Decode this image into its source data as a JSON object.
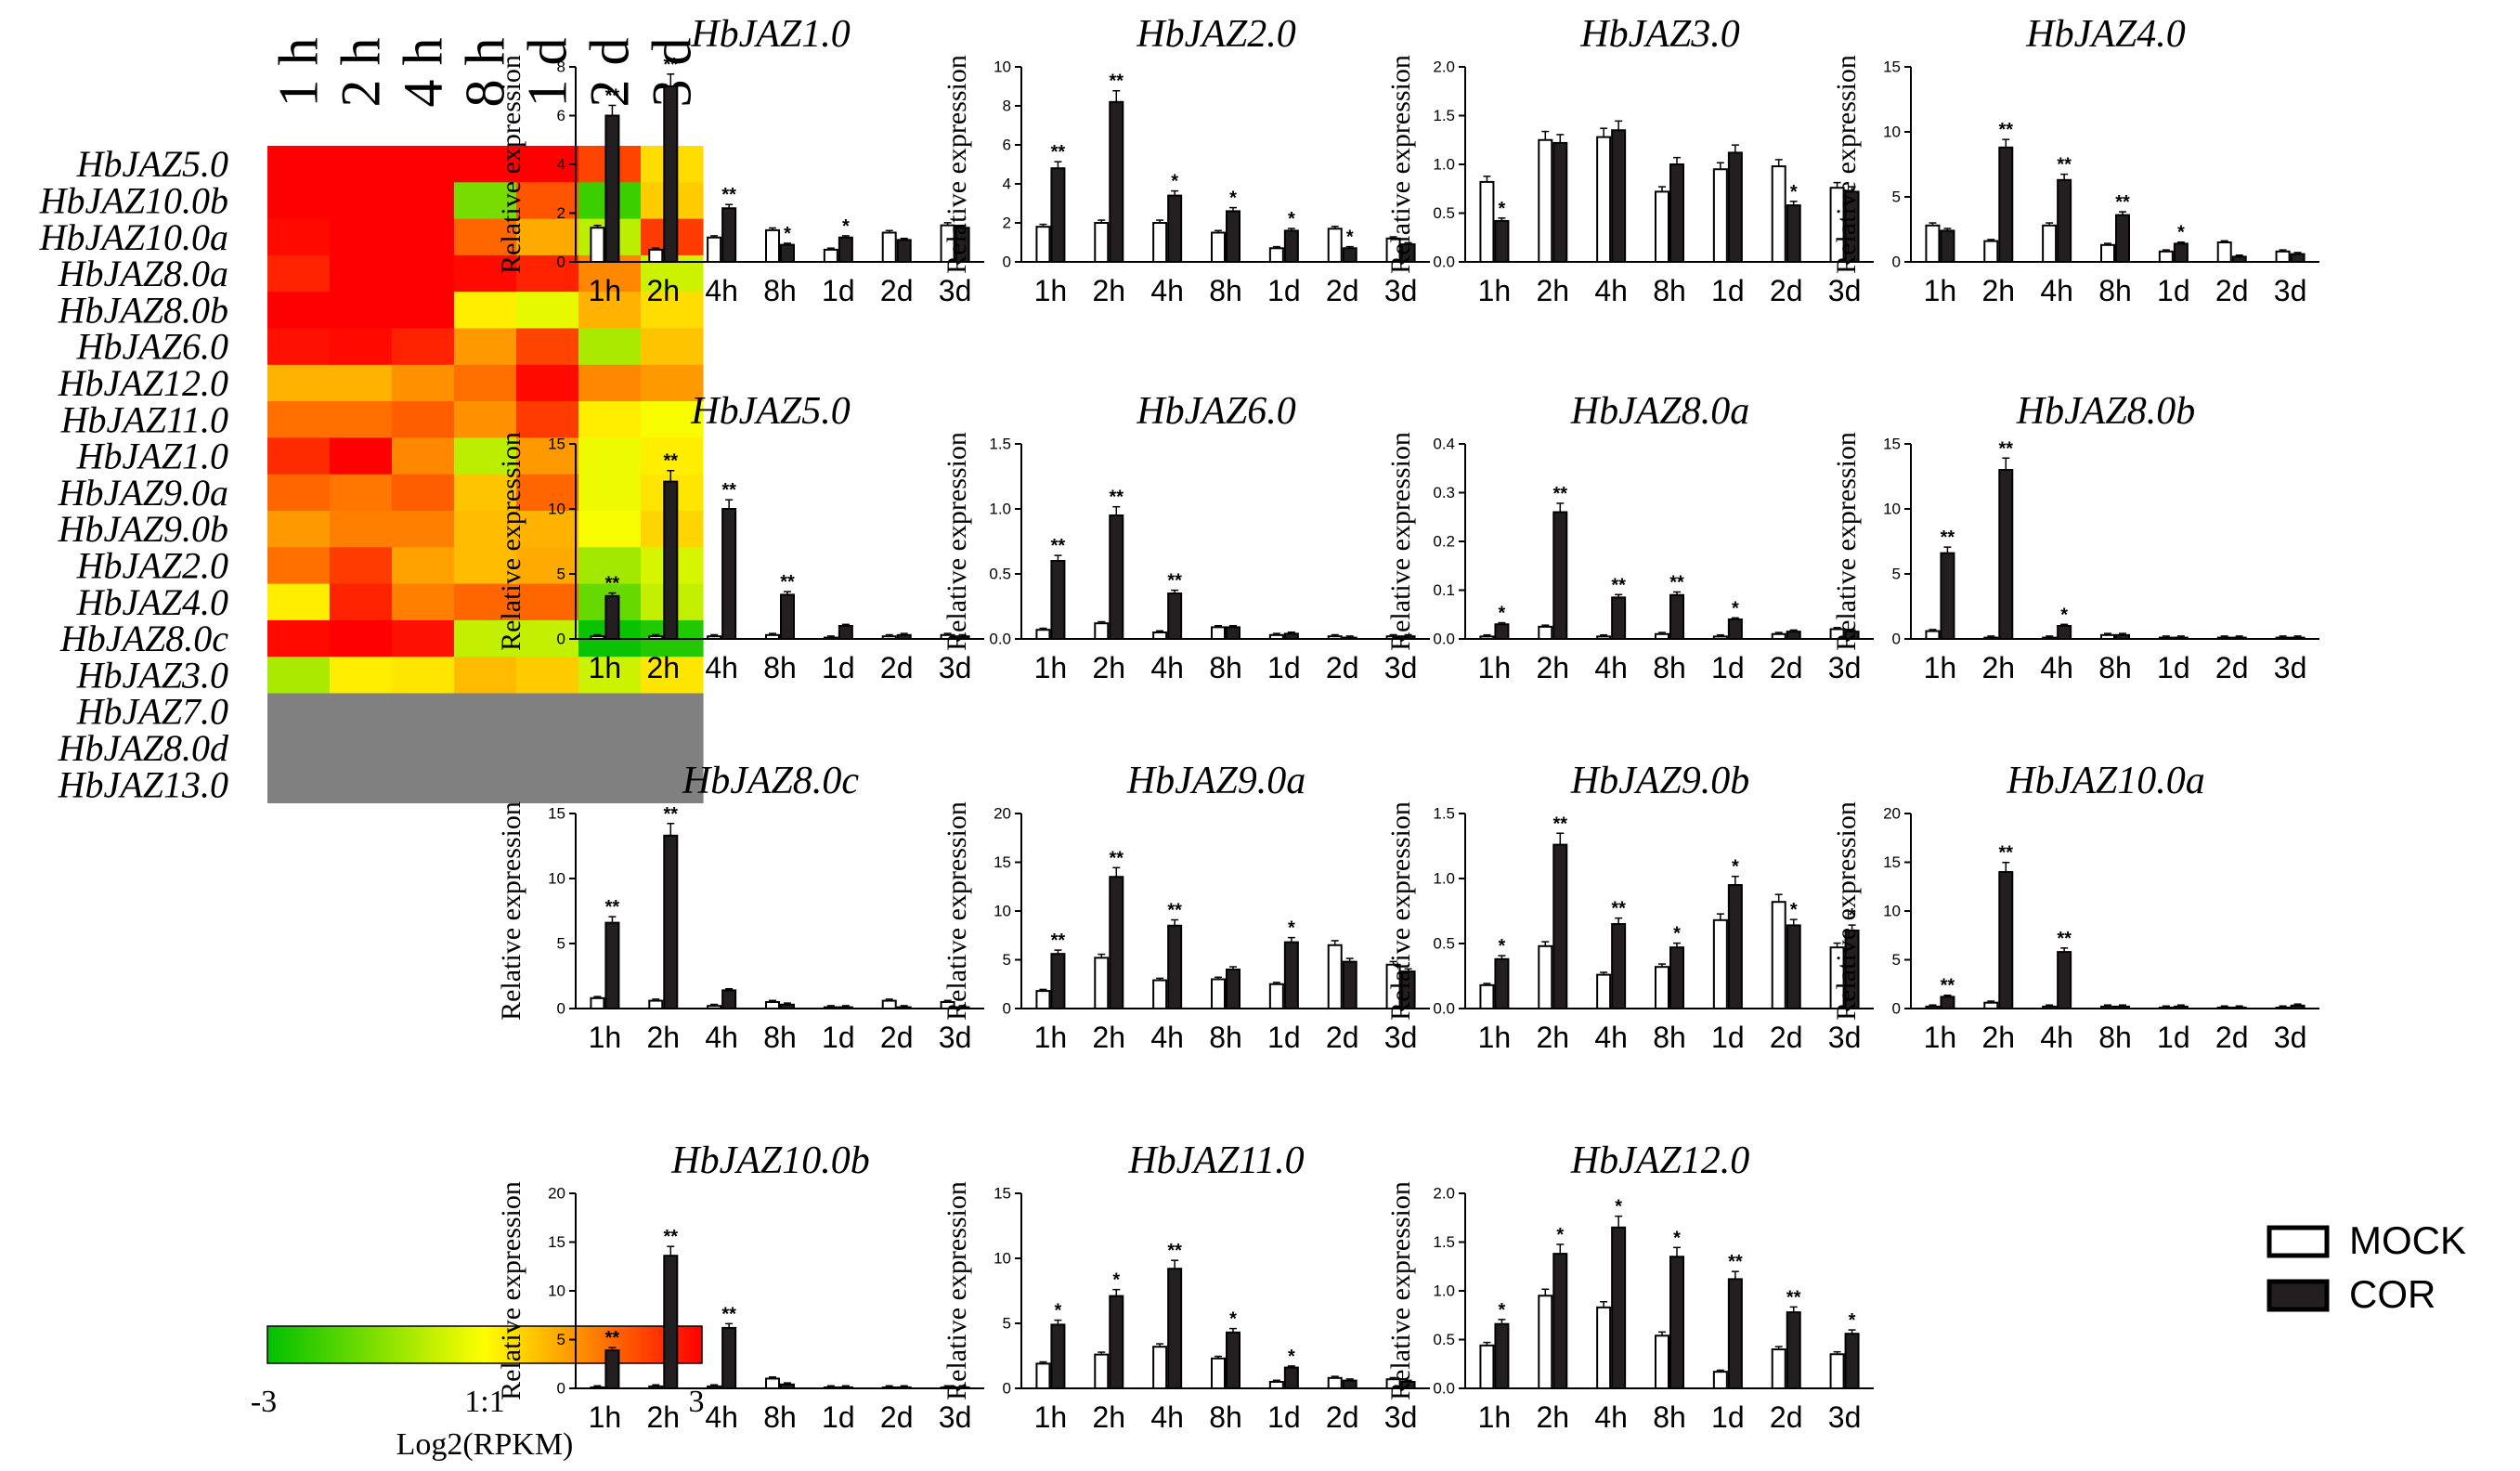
{
  "heatmap": {
    "columns": [
      "1 h",
      "2 h",
      "4 h",
      "8 h",
      "1 d",
      "2 d",
      "3 d"
    ],
    "rows": [
      {
        "gene": "HbJAZ5.0",
        "values": [
          3.0,
          3.0,
          3.0,
          3.0,
          3.0,
          2.2,
          0.4
        ]
      },
      {
        "gene": "HbJAZ10.0b",
        "values": [
          3.0,
          3.0,
          3.0,
          -1.6,
          2.0,
          -2.3,
          0.6
        ]
      },
      {
        "gene": "HbJAZ10.0a",
        "values": [
          2.9,
          3.0,
          3.0,
          1.8,
          1.0,
          -0.8,
          2.3
        ]
      },
      {
        "gene": "HbJAZ8.0a",
        "values": [
          2.6,
          3.0,
          3.0,
          2.9,
          2.6,
          1.4,
          -0.6
        ]
      },
      {
        "gene": "HbJAZ8.0b",
        "values": [
          3.0,
          3.0,
          3.0,
          0.2,
          -0.3,
          0.9,
          0.4
        ]
      },
      {
        "gene": "HbJAZ6.0",
        "values": [
          2.8,
          2.9,
          2.6,
          1.2,
          2.2,
          -1.0,
          0.7
        ]
      },
      {
        "gene": "HbJAZ12.0",
        "values": [
          0.9,
          0.9,
          1.3,
          1.7,
          2.9,
          1.4,
          1.2
        ]
      },
      {
        "gene": "HbJAZ11.0",
        "values": [
          1.7,
          1.7,
          1.9,
          1.3,
          2.3,
          0.2,
          -0.1
        ]
      },
      {
        "gene": "HbJAZ1.0",
        "values": [
          2.5,
          3.0,
          1.4,
          -0.8,
          1.2,
          -0.2,
          0.2
        ]
      },
      {
        "gene": "HbJAZ9.0a",
        "values": [
          1.8,
          1.6,
          1.9,
          0.7,
          1.8,
          -0.2,
          0.3
        ]
      },
      {
        "gene": "HbJAZ9.0b",
        "values": [
          1.2,
          1.5,
          1.5,
          0.8,
          0.9,
          -0.1,
          0.5
        ]
      },
      {
        "gene": "HbJAZ2.0",
        "values": [
          1.7,
          2.3,
          1.1,
          0.8,
          1.0,
          -1.1,
          -0.5
        ]
      },
      {
        "gene": "HbJAZ4.0",
        "values": [
          0.2,
          2.6,
          1.5,
          1.8,
          1.8,
          -1.8,
          -0.7
        ]
      },
      {
        "gene": "HbJAZ8.0c",
        "values": [
          2.9,
          3.0,
          2.8,
          -0.7,
          -0.7,
          -2.9,
          -2.6
        ]
      },
      {
        "gene": "HbJAZ3.0",
        "values": [
          -1.0,
          0.2,
          0.3,
          0.8,
          0.6,
          -0.6,
          0.3
        ]
      },
      {
        "gene": "HbJAZ7.0",
        "values": [
          null,
          null,
          null,
          null,
          null,
          null,
          null
        ]
      },
      {
        "gene": "HbJAZ8.0d",
        "values": [
          null,
          null,
          null,
          null,
          null,
          null,
          null
        ]
      },
      {
        "gene": "HbJAZ13.0",
        "values": [
          null,
          null,
          null,
          null,
          null,
          null,
          null
        ]
      }
    ],
    "colorbar": {
      "min_label": "-3",
      "mid_label": "1:1",
      "max_label": "3",
      "title": "Log2(RPKM)",
      "low_color": "#00c000",
      "mid_color": "#ffff00",
      "high_color": "#ff0000",
      "missing_color": "#808080"
    }
  },
  "legend": {
    "items": [
      {
        "label": "MOCK",
        "fill": "#ffffff"
      },
      {
        "label": "COR",
        "fill": "#231f20"
      }
    ]
  },
  "chart_data": [
    {
      "type": "bar",
      "title": "HbJAZ1.0",
      "ylabel": "Relative expression",
      "categories": [
        "1h",
        "2h",
        "4h",
        "8h",
        "1d",
        "2d",
        "3d"
      ],
      "ylim": [
        0,
        8
      ],
      "yticks": [
        0,
        2,
        4,
        6,
        8
      ],
      "series": [
        {
          "name": "MOCK",
          "values": [
            1.4,
            0.5,
            1.0,
            1.3,
            0.5,
            1.2,
            1.5
          ]
        },
        {
          "name": "COR",
          "values": [
            6.0,
            7.2,
            2.2,
            0.7,
            1.0,
            0.9,
            1.4
          ]
        }
      ],
      "significance": [
        "**",
        "**",
        "**",
        "*",
        "*",
        "",
        ""
      ]
    },
    {
      "type": "bar",
      "title": "HbJAZ2.0",
      "ylabel": "Relative expression",
      "categories": [
        "1h",
        "2h",
        "4h",
        "8h",
        "1d",
        "2d",
        "3d"
      ],
      "ylim": [
        0,
        10
      ],
      "yticks": [
        0,
        2,
        4,
        6,
        8,
        10
      ],
      "series": [
        {
          "name": "MOCK",
          "values": [
            1.8,
            2.0,
            2.0,
            1.5,
            0.7,
            1.7,
            1.2
          ]
        },
        {
          "name": "COR",
          "values": [
            4.8,
            8.2,
            3.4,
            2.6,
            1.6,
            0.7,
            0.9
          ]
        }
      ],
      "significance": [
        "**",
        "**",
        "*",
        "*",
        "*",
        "*",
        ""
      ]
    },
    {
      "type": "bar",
      "title": "HbJAZ3.0",
      "ylabel": "Relative expression",
      "categories": [
        "1h",
        "2h",
        "4h",
        "8h",
        "1d",
        "2d",
        "3d"
      ],
      "ylim": [
        0,
        2.0
      ],
      "yticks": [
        0.0,
        0.5,
        1.0,
        1.5,
        2.0
      ],
      "series": [
        {
          "name": "MOCK",
          "values": [
            0.82,
            1.25,
            1.28,
            0.72,
            0.95,
            0.98,
            0.76
          ]
        },
        {
          "name": "COR",
          "values": [
            0.42,
            1.22,
            1.35,
            1.0,
            1.12,
            0.58,
            0.72
          ]
        }
      ],
      "significance": [
        "*",
        "",
        "",
        "",
        "",
        "*",
        ""
      ]
    },
    {
      "type": "bar",
      "title": "HbJAZ4.0",
      "ylabel": "Relative expression",
      "categories": [
        "1h",
        "2h",
        "4h",
        "8h",
        "1d",
        "2d",
        "3d"
      ],
      "ylim": [
        0,
        15
      ],
      "yticks": [
        0,
        5,
        10,
        15
      ],
      "series": [
        {
          "name": "MOCK",
          "values": [
            2.8,
            1.6,
            2.8,
            1.3,
            0.8,
            1.5,
            0.8
          ]
        },
        {
          "name": "COR",
          "values": [
            2.4,
            8.8,
            6.3,
            3.6,
            1.4,
            0.4,
            0.6
          ]
        }
      ],
      "significance": [
        "",
        "**",
        "**",
        "**",
        "*",
        "",
        ""
      ]
    },
    {
      "type": "bar",
      "title": "HbJAZ5.0",
      "ylabel": "Relative expression",
      "categories": [
        "1h",
        "2h",
        "4h",
        "8h",
        "1d",
        "2d",
        "3d"
      ],
      "ylim": [
        0,
        15
      ],
      "yticks": [
        0,
        5,
        10,
        15
      ],
      "series": [
        {
          "name": "MOCK",
          "values": [
            0.2,
            0.2,
            0.2,
            0.3,
            0.1,
            0.2,
            0.3
          ]
        },
        {
          "name": "COR",
          "values": [
            3.3,
            12.1,
            10.0,
            3.4,
            1.0,
            0.3,
            0.2
          ]
        }
      ],
      "significance": [
        "**",
        "**",
        "**",
        "**",
        "",
        "",
        ""
      ]
    },
    {
      "type": "bar",
      "title": "HbJAZ6.0",
      "ylabel": "Relative expression",
      "categories": [
        "1h",
        "2h",
        "4h",
        "8h",
        "1d",
        "2d",
        "3d"
      ],
      "ylim": [
        0,
        1.5
      ],
      "yticks": [
        0.0,
        0.5,
        1.0,
        1.5
      ],
      "series": [
        {
          "name": "MOCK",
          "values": [
            0.07,
            0.12,
            0.05,
            0.09,
            0.03,
            0.02,
            0.02
          ]
        },
        {
          "name": "COR",
          "values": [
            0.6,
            0.95,
            0.35,
            0.09,
            0.04,
            0.01,
            0.02
          ]
        }
      ],
      "significance": [
        "**",
        "**",
        "**",
        "",
        "",
        "",
        ""
      ]
    },
    {
      "type": "bar",
      "title": "HbJAZ8.0a",
      "ylabel": "Relative expression",
      "categories": [
        "1h",
        "2h",
        "4h",
        "8h",
        "1d",
        "2d",
        "3d"
      ],
      "ylim": [
        0,
        0.4
      ],
      "yticks": [
        0.0,
        0.1,
        0.2,
        0.3,
        0.4
      ],
      "series": [
        {
          "name": "MOCK",
          "values": [
            0.005,
            0.025,
            0.005,
            0.01,
            0.005,
            0.01,
            0.02
          ]
        },
        {
          "name": "COR",
          "values": [
            0.03,
            0.26,
            0.085,
            0.09,
            0.04,
            0.015,
            0.015
          ]
        }
      ],
      "significance": [
        "*",
        "**",
        "**",
        "**",
        "*",
        "",
        ""
      ]
    },
    {
      "type": "bar",
      "title": "HbJAZ8.0b",
      "ylabel": "Relative expression",
      "categories": [
        "1h",
        "2h",
        "4h",
        "8h",
        "1d",
        "2d",
        "3d"
      ],
      "ylim": [
        0,
        15
      ],
      "yticks": [
        0,
        5,
        10,
        15
      ],
      "series": [
        {
          "name": "MOCK",
          "values": [
            0.6,
            0.1,
            0.1,
            0.3,
            0.1,
            0.1,
            0.1
          ]
        },
        {
          "name": "COR",
          "values": [
            6.6,
            13.0,
            1.0,
            0.3,
            0.1,
            0.1,
            0.1
          ]
        }
      ],
      "significance": [
        "**",
        "**",
        "*",
        "",
        "",
        "",
        ""
      ]
    },
    {
      "type": "bar",
      "title": "HbJAZ8.0c",
      "ylabel": "Relative expression",
      "categories": [
        "1h",
        "2h",
        "4h",
        "8h",
        "1d",
        "2d",
        "3d"
      ],
      "ylim": [
        0,
        15
      ],
      "yticks": [
        0,
        5,
        10,
        15
      ],
      "series": [
        {
          "name": "MOCK",
          "values": [
            0.8,
            0.6,
            0.2,
            0.5,
            0.1,
            0.6,
            0.5
          ]
        },
        {
          "name": "COR",
          "values": [
            6.6,
            13.3,
            1.4,
            0.3,
            0.1,
            0.1,
            0.1
          ]
        }
      ],
      "significance": [
        "**",
        "**",
        "",
        "",
        "",
        "",
        ""
      ]
    },
    {
      "type": "bar",
      "title": "HbJAZ9.0a",
      "ylabel": "Relative expression",
      "categories": [
        "1h",
        "2h",
        "4h",
        "8h",
        "1d",
        "2d",
        "3d"
      ],
      "ylim": [
        0,
        20
      ],
      "yticks": [
        0,
        5,
        10,
        15,
        20
      ],
      "series": [
        {
          "name": "MOCK",
          "values": [
            1.8,
            5.2,
            2.9,
            3.0,
            2.5,
            6.5,
            4.5
          ]
        },
        {
          "name": "COR",
          "values": [
            5.6,
            13.5,
            8.5,
            4.0,
            6.8,
            4.8,
            3.8
          ]
        }
      ],
      "significance": [
        "**",
        "**",
        "**",
        "",
        "*",
        "",
        ""
      ]
    },
    {
      "type": "bar",
      "title": "HbJAZ9.0b",
      "ylabel": "Relative expression",
      "categories": [
        "1h",
        "2h",
        "4h",
        "8h",
        "1d",
        "2d",
        "3d"
      ],
      "ylim": [
        0,
        1.5
      ],
      "yticks": [
        0.0,
        0.5,
        1.0,
        1.5
      ],
      "series": [
        {
          "name": "MOCK",
          "values": [
            0.18,
            0.48,
            0.26,
            0.32,
            0.68,
            0.82,
            0.47
          ]
        },
        {
          "name": "COR",
          "values": [
            0.38,
            1.26,
            0.65,
            0.47,
            0.95,
            0.64,
            0.6
          ]
        }
      ],
      "significance": [
        "*",
        "**",
        "**",
        "*",
        "*",
        "*",
        "*"
      ]
    },
    {
      "type": "bar",
      "title": "HbJAZ10.0a",
      "ylabel": "Relative expression",
      "categories": [
        "1h",
        "2h",
        "4h",
        "8h",
        "1d",
        "2d",
        "3d"
      ],
      "ylim": [
        0,
        20
      ],
      "yticks": [
        0,
        5,
        10,
        15,
        20
      ],
      "series": [
        {
          "name": "MOCK",
          "values": [
            0.2,
            0.6,
            0.2,
            0.2,
            0.1,
            0.1,
            0.1
          ]
        },
        {
          "name": "COR",
          "values": [
            1.2,
            14.0,
            5.8,
            0.2,
            0.2,
            0.1,
            0.3
          ]
        }
      ],
      "significance": [
        "**",
        "**",
        "**",
        "",
        "",
        "",
        ""
      ]
    },
    {
      "type": "bar",
      "title": "HbJAZ10.0b",
      "ylabel": "Relative expression",
      "categories": [
        "1h",
        "2h",
        "4h",
        "8h",
        "1d",
        "2d",
        "3d"
      ],
      "ylim": [
        0,
        20
      ],
      "yticks": [
        0,
        5,
        10,
        15,
        20
      ],
      "series": [
        {
          "name": "MOCK",
          "values": [
            0.1,
            0.2,
            0.2,
            1.0,
            0.1,
            0.1,
            0.1
          ]
        },
        {
          "name": "COR",
          "values": [
            3.9,
            13.6,
            6.2,
            0.4,
            0.1,
            0.1,
            0.1
          ]
        }
      ],
      "significance": [
        "**",
        "**",
        "**",
        "",
        "",
        "",
        ""
      ]
    },
    {
      "type": "bar",
      "title": "HbJAZ11.0",
      "ylabel": "Relative expression",
      "categories": [
        "1h",
        "2h",
        "4h",
        "8h",
        "1d",
        "2d",
        "3d"
      ],
      "ylim": [
        0,
        15
      ],
      "yticks": [
        0,
        5,
        10,
        15
      ],
      "series": [
        {
          "name": "MOCK",
          "values": [
            1.9,
            2.6,
            3.2,
            2.3,
            0.5,
            0.8,
            0.7
          ]
        },
        {
          "name": "COR",
          "values": [
            4.9,
            7.1,
            9.2,
            4.3,
            1.6,
            0.6,
            0.5
          ]
        }
      ],
      "significance": [
        "*",
        "*",
        "**",
        "*",
        "*",
        "",
        ""
      ]
    },
    {
      "type": "bar",
      "title": "HbJAZ12.0",
      "ylabel": "Relative expression",
      "categories": [
        "1h",
        "2h",
        "4h",
        "8h",
        "1d",
        "2d",
        "3d"
      ],
      "ylim": [
        0,
        2.0
      ],
      "yticks": [
        0.0,
        0.5,
        1.0,
        1.5,
        2.0
      ],
      "series": [
        {
          "name": "MOCK",
          "values": [
            0.44,
            0.95,
            0.83,
            0.54,
            0.17,
            0.4,
            0.35
          ]
        },
        {
          "name": "COR",
          "values": [
            0.66,
            1.38,
            1.65,
            1.35,
            1.12,
            0.78,
            0.56
          ]
        }
      ],
      "significance": [
        "*",
        "*",
        "*",
        "*",
        "**",
        "**",
        "*"
      ]
    }
  ]
}
